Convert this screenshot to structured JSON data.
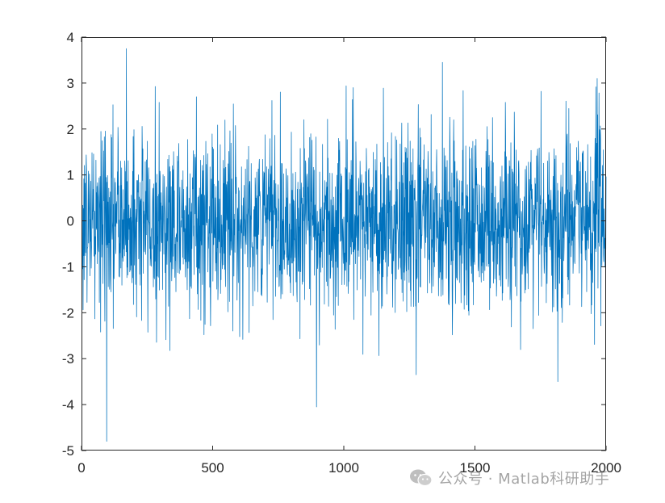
{
  "chart_data": {
    "type": "line",
    "title": "",
    "xlabel": "",
    "ylabel": "",
    "xlim": [
      0,
      2000
    ],
    "ylim": [
      -5,
      4
    ],
    "x_ticks": [
      0,
      500,
      1000,
      1500,
      2000
    ],
    "y_ticks": [
      -5,
      -4,
      -3,
      -2,
      -1,
      0,
      1,
      2,
      3,
      4
    ],
    "x_tick_labels": [
      "0",
      "500",
      "1000",
      "1500",
      "2000"
    ],
    "y_tick_labels": [
      "-5",
      "-4",
      "-3",
      "-2",
      "-1",
      "0",
      "1",
      "2",
      "3",
      "4"
    ],
    "grid": false,
    "series": [
      {
        "color": "#0072BD",
        "n_points": 2000,
        "distribution": "white gaussian noise, mean ≈ 0, std ≈ 1",
        "notable_points": [
          {
            "x": 95,
            "y": -4.8
          },
          {
            "x": 170,
            "y": 3.75
          },
          {
            "x": 895,
            "y": -4.05
          },
          {
            "x": 1375,
            "y": 3.45
          },
          {
            "x": 1275,
            "y": -3.35
          },
          {
            "x": 1815,
            "y": -3.5
          },
          {
            "x": 1965,
            "y": 3.1
          }
        ]
      }
    ]
  },
  "watermark": {
    "text": "公众号 · Matlab科研助手",
    "icon": "wechat-icon"
  }
}
